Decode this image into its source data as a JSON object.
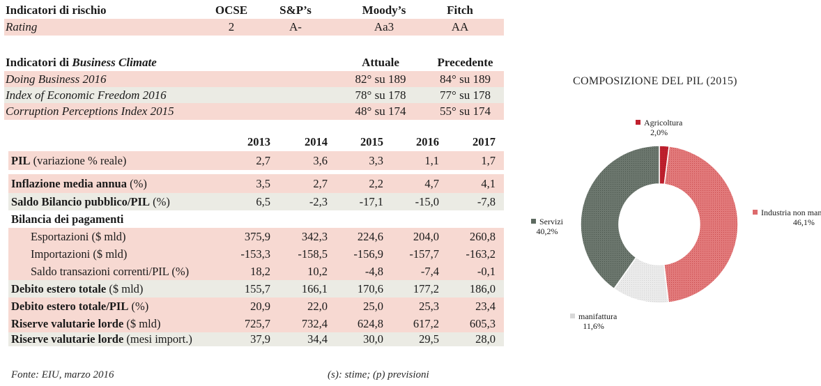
{
  "rating": {
    "header": {
      "title": "Indicatori di rischio",
      "c1": "OCSE",
      "c2": "S&P’s",
      "c3": "Moody’s",
      "c4": "Fitch"
    },
    "row": {
      "label": "Rating",
      "v1": "2",
      "v2": "A-",
      "v3": "Aa3",
      "v4": "AA"
    }
  },
  "business": {
    "title_prefix": "Indicatori di ",
    "title_italic": "Business Climate",
    "col_current": "Attuale",
    "col_previous": "Precedente",
    "rows": [
      {
        "label": "Doing Business 2016",
        "current": "82° su 189",
        "previous": "84° su 189"
      },
      {
        "label": "Index of Economic Freedom 2016",
        "current": "78° su 178",
        "previous": "77° su 178"
      },
      {
        "label": "Corruption Perceptions Index 2015",
        "current": "48° su 174",
        "previous": "55° su 174"
      }
    ]
  },
  "macro": {
    "years": [
      "2013",
      "2014",
      "2015",
      "2016",
      "2017"
    ],
    "rows": [
      {
        "bold": "PIL",
        "rest": " (variazione % reale)",
        "values": [
          "2,7",
          "3,6",
          "3,3",
          "1,1",
          "1,7"
        ]
      },
      {
        "bold": "Inflazione media annua",
        "rest": " (%)",
        "values": [
          "3,5",
          "2,7",
          "2,2",
          "4,7",
          "4,1"
        ]
      },
      {
        "bold": "Saldo Bilancio pubblico/PIL",
        "rest": " (%)",
        "values": [
          "6,5",
          "-2,3",
          "-17,1",
          "-15,0",
          "-7,8"
        ]
      },
      {
        "bold": "Bilancia dei pagamenti",
        "rest": "",
        "values": [
          "",
          "",
          "",
          "",
          ""
        ]
      },
      {
        "bold": "",
        "rest": "Esportazioni ($ mld)",
        "values": [
          "375,9",
          "342,3",
          "224,6",
          "204,0",
          "260,8"
        ]
      },
      {
        "bold": "",
        "rest": "Importazioni ($ mld)",
        "values": [
          "-153,3",
          "-158,5",
          "-156,9",
          "-157,7",
          "-163,2"
        ]
      },
      {
        "bold": "",
        "rest": "Saldo transazioni correnti/PIL (%)",
        "values": [
          "18,2",
          "10,2",
          "-4,8",
          "-7,4",
          "-0,1"
        ]
      },
      {
        "bold": "Debito estero totale",
        "rest": " ($ mld)",
        "values": [
          "155,7",
          "166,1",
          "170,6",
          "177,2",
          "186,0"
        ]
      },
      {
        "bold": "Debito estero totale/PIL",
        "rest": " (%)",
        "values": [
          "20,9",
          "22,0",
          "25,0",
          "25,3",
          "23,4"
        ]
      },
      {
        "bold": "Riserve valutarie lorde",
        "rest": " ($ mld)",
        "values": [
          "725,7",
          "732,4",
          "624,8",
          "617,2",
          "605,3"
        ]
      },
      {
        "bold": "Riserve valutarie lorde",
        "rest": " (mesi import.)",
        "values": [
          "37,9",
          "34,4",
          "30,0",
          "29,5",
          "28,0"
        ]
      }
    ]
  },
  "chart_data": {
    "type": "pie",
    "title": "COMPOSIZIONE DEL PIL (2015)",
    "categories": [
      "Agricoltura",
      "Industria non manifatturiera",
      "manifattura",
      "Servizi"
    ],
    "values": [
      2.0,
      46.1,
      11.6,
      40.2
    ],
    "value_labels": [
      "2,0%",
      "46,1%",
      "11,6%",
      "40,2%"
    ],
    "colors": [
      "#c0202e",
      "#dd6a6c",
      "#e4e4e4",
      "#5d6a60"
    ],
    "donut": true
  },
  "footer": {
    "source": "Fonte: EIU, marzo 2016",
    "note": "(s): stime; (p) previsioni"
  }
}
